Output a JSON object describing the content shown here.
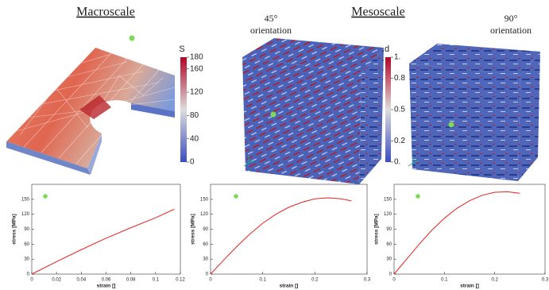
{
  "headings": [
    "Macroscale",
    "Mesoscale"
  ],
  "orientations": [
    {
      "angle": "45°",
      "label": "orientation"
    },
    {
      "angle": "90°",
      "label": "orientation"
    }
  ],
  "colorbars": [
    {
      "title": "S",
      "lim": [
        0,
        180
      ],
      "ticks": [
        0,
        40,
        80,
        120,
        160,
        180
      ]
    },
    {
      "title": "d",
      "lim": [
        0,
        1
      ],
      "ticks": [
        {
          "value": 0,
          "label": "0."
        },
        0.2,
        0.5,
        0.8,
        {
          "value": 1,
          "label": "1."
        }
      ]
    }
  ],
  "chart_data": [
    {
      "type": "line",
      "xlabel": "strain []",
      "ylabel": "stress [MPa]",
      "x": [
        0,
        0.02,
        0.04,
        0.06,
        0.08,
        0.1,
        0.115
      ],
      "series": [
        {
          "color": "#e8231f",
          "values": [
            0,
            25,
            49,
            72,
            93,
            113,
            130
          ]
        }
      ],
      "xlim": [
        0,
        0.12
      ],
      "xticks": [
        0,
        0.02,
        0.04,
        0.06,
        0.08,
        0.1,
        0.12
      ],
      "ylim": [
        0,
        180
      ],
      "yticks": [
        0,
        30,
        60,
        90,
        120,
        150
      ]
    },
    {
      "type": "line",
      "xlabel": "strain []",
      "ylabel": "stress [MPa]",
      "x": [
        0,
        0.025,
        0.05,
        0.075,
        0.1,
        0.125,
        0.15,
        0.175,
        0.2,
        0.225,
        0.25,
        0.27
      ],
      "series": [
        {
          "color": "#e8231f",
          "values": [
            0,
            28,
            55,
            80,
            102,
            120,
            134,
            144,
            151,
            153,
            151,
            147
          ]
        }
      ],
      "xlim": [
        0,
        0.3
      ],
      "xticks": [
        0,
        0.1,
        0.2,
        0.3
      ],
      "ylim": [
        0,
        180
      ],
      "yticks": [
        0,
        30,
        60,
        90,
        120,
        150
      ]
    },
    {
      "type": "line",
      "xlabel": "strain []",
      "ylabel": "stress [MPa]",
      "x": [
        0,
        0.025,
        0.05,
        0.075,
        0.1,
        0.125,
        0.15,
        0.175,
        0.2,
        0.225,
        0.25
      ],
      "series": [
        {
          "color": "#e8231f",
          "values": [
            0,
            30,
            60,
            88,
            112,
            132,
            147,
            158,
            164,
            165,
            162
          ]
        }
      ],
      "xlim": [
        0,
        0.3
      ],
      "xticks": [
        0,
        0.1,
        0.2,
        0.3
      ],
      "ylim": [
        0,
        180
      ],
      "yticks": [
        0,
        30,
        60,
        90,
        120,
        150
      ]
    }
  ]
}
